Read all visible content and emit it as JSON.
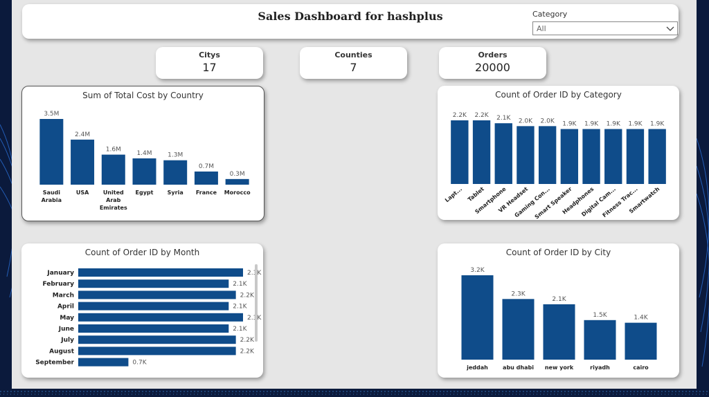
{
  "header": {
    "title": "Sales Dashboard for hashplus",
    "category_label": "Category",
    "category_value": "All"
  },
  "kpis": [
    {
      "label": "Citys",
      "value": "17"
    },
    {
      "label": "Counties",
      "value": "7"
    },
    {
      "label": "Orders",
      "value": "20000"
    }
  ],
  "colors": {
    "bar": "#0f4c8a",
    "canvas": "#e6e6e6",
    "frame": "#0b1a3c"
  },
  "chart_data": [
    {
      "type": "bar",
      "title": "Sum of Total Cost by Country",
      "categories": [
        "Saudi Arabia",
        "USA",
        "United Arab Emirates",
        "Egypt",
        "Syria",
        "France",
        "Morocco"
      ],
      "values": [
        3.5,
        2.4,
        1.6,
        1.4,
        1.3,
        0.7,
        0.3
      ],
      "data_labels": [
        "3.5M",
        "2.4M",
        "1.6M",
        "1.4M",
        "1.3M",
        "0.7M",
        "0.3M"
      ],
      "unit": "M"
    },
    {
      "type": "bar",
      "title": "Count of Order ID by Category",
      "categories": [
        "Lapt...",
        "Tablet",
        "Smartphone",
        "VR Headset",
        "Gaming Con...",
        "Smart Speaker",
        "Headphones",
        "Digital Cam...",
        "Fitness Trac...",
        "Smartwatch"
      ],
      "values": [
        2.2,
        2.2,
        2.1,
        2.0,
        2.0,
        1.9,
        1.9,
        1.9,
        1.9,
        1.9
      ],
      "data_labels": [
        "2.2K",
        "2.2K",
        "2.1K",
        "2.0K",
        "2.0K",
        "1.9K",
        "1.9K",
        "1.9K",
        "1.9K",
        "1.9K"
      ],
      "unit": "K"
    },
    {
      "type": "bar",
      "orientation": "horizontal",
      "title": "Count of Order ID by Month",
      "categories": [
        "January",
        "February",
        "March",
        "April",
        "May",
        "June",
        "July",
        "August",
        "September"
      ],
      "values": [
        2.3,
        2.1,
        2.2,
        2.1,
        2.3,
        2.1,
        2.2,
        2.2,
        0.7
      ],
      "data_labels": [
        "2.3K",
        "2.1K",
        "2.2K",
        "2.1K",
        "2.3K",
        "2.1K",
        "2.2K",
        "2.2K",
        "0.7K"
      ],
      "unit": "K"
    },
    {
      "type": "bar",
      "title": "Count of Order ID by City",
      "categories": [
        "jeddah",
        "abu dhabi",
        "new york",
        "riyadh",
        "cairo"
      ],
      "values": [
        3.2,
        2.3,
        2.1,
        1.5,
        1.4
      ],
      "data_labels": [
        "3.2K",
        "2.3K",
        "2.1K",
        "1.5K",
        "1.4K"
      ],
      "unit": "K"
    }
  ]
}
